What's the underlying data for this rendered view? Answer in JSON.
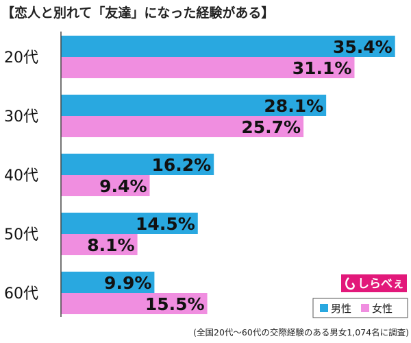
{
  "chart_data": {
    "type": "bar",
    "orientation": "horizontal",
    "title": "【恋人と別れて「友達」になった経験がある】",
    "categories": [
      "20代",
      "30代",
      "40代",
      "50代",
      "60代"
    ],
    "series": [
      {
        "name": "男性",
        "values": [
          35.4,
          28.1,
          16.2,
          14.5,
          9.9
        ],
        "color": "#29a8e0"
      },
      {
        "name": "女性",
        "values": [
          31.1,
          25.7,
          9.4,
          8.1,
          15.5
        ],
        "color": "#f08ee0"
      }
    ],
    "value_suffix": "%",
    "xlim": [
      0,
      36
    ],
    "grid": false,
    "legend_position": "bottom-right",
    "footnote": "(全国20代〜60代の交際経験のある男女1,074名に調査)",
    "logo_text": "しらべぇ",
    "logo_color": "#e2187a"
  }
}
